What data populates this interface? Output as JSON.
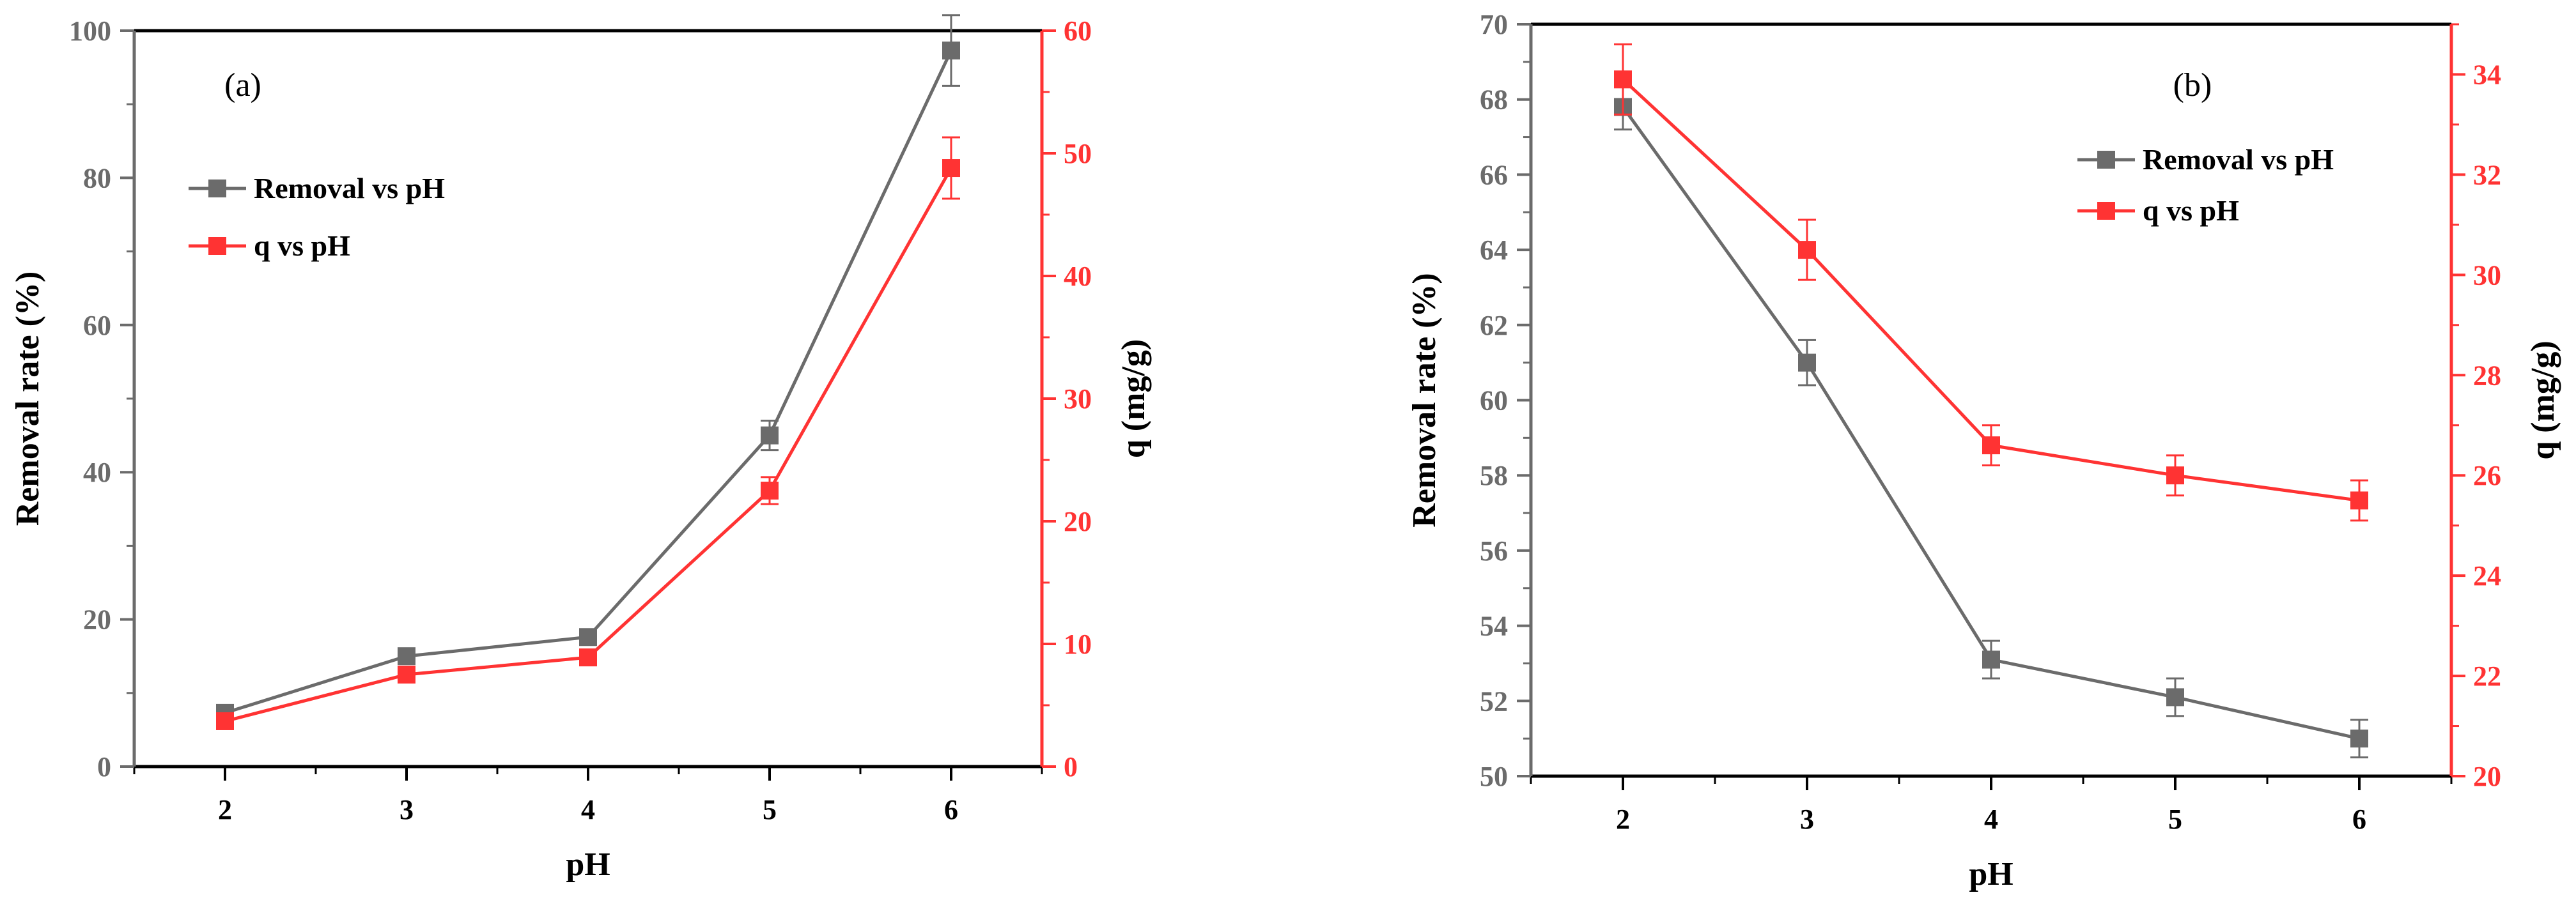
{
  "colors": {
    "removal": "#6b6b6b",
    "q": "#ff3333",
    "axis": "#000000"
  },
  "chart_data": [
    {
      "panel_label": "(a)",
      "type": "line",
      "x": [
        2,
        3,
        4,
        5,
        6
      ],
      "xlabel": "pH",
      "xlim": [
        1.5,
        6.5
      ],
      "x_ticks": [
        "2",
        "3",
        "4",
        "5",
        "6"
      ],
      "ylabel_left": "Removal rate (%)",
      "ylim_left": [
        0,
        100
      ],
      "left_ticks": [
        "0",
        "20",
        "40",
        "60",
        "80",
        "100"
      ],
      "ylabel_right": "q (mg/g)",
      "ylim_right": [
        0,
        60
      ],
      "right_ticks": [
        "0",
        "10",
        "20",
        "30",
        "40",
        "50",
        "60"
      ],
      "legend_position": "upper-left",
      "series": [
        {
          "name": "Removal vs pH",
          "axis": "left",
          "color": "#6b6b6b",
          "values": [
            7.3,
            15.0,
            17.6,
            45.0,
            97.3
          ],
          "errors": [
            0.8,
            0.7,
            0.7,
            2.0,
            4.8
          ]
        },
        {
          "name": "q vs pH",
          "axis": "right",
          "color": "#ff3333",
          "values": [
            3.7,
            7.5,
            8.9,
            22.5,
            48.8
          ],
          "errors": [
            0.6,
            0.5,
            0.5,
            1.1,
            2.5
          ]
        }
      ]
    },
    {
      "panel_label": "(b)",
      "type": "line",
      "x": [
        2,
        3,
        4,
        5,
        6
      ],
      "xlabel": "pH",
      "xlim": [
        1.5,
        6.5
      ],
      "x_ticks": [
        "2",
        "3",
        "4",
        "5",
        "6"
      ],
      "ylabel_left": "Removal rate (%)",
      "ylim_left": [
        50,
        70
      ],
      "left_ticks": [
        "50",
        "52",
        "54",
        "56",
        "58",
        "60",
        "62",
        "64",
        "66",
        "68",
        "70"
      ],
      "ylabel_right": "q (mg/g)",
      "ylim_right": [
        20,
        35
      ],
      "right_ticks": [
        "20",
        "22",
        "24",
        "26",
        "28",
        "30",
        "32",
        "34"
      ],
      "legend_position": "upper-right",
      "series": [
        {
          "name": "Removal vs pH",
          "axis": "left",
          "color": "#6b6b6b",
          "values": [
            67.8,
            61.0,
            53.1,
            52.1,
            51.0
          ],
          "errors": [
            0.6,
            0.6,
            0.5,
            0.5,
            0.5
          ]
        },
        {
          "name": "q vs pH",
          "axis": "right",
          "color": "#ff3333",
          "values": [
            33.9,
            30.5,
            26.6,
            26.0,
            25.5
          ],
          "errors": [
            0.7,
            0.6,
            0.4,
            0.4,
            0.4
          ]
        }
      ]
    }
  ]
}
